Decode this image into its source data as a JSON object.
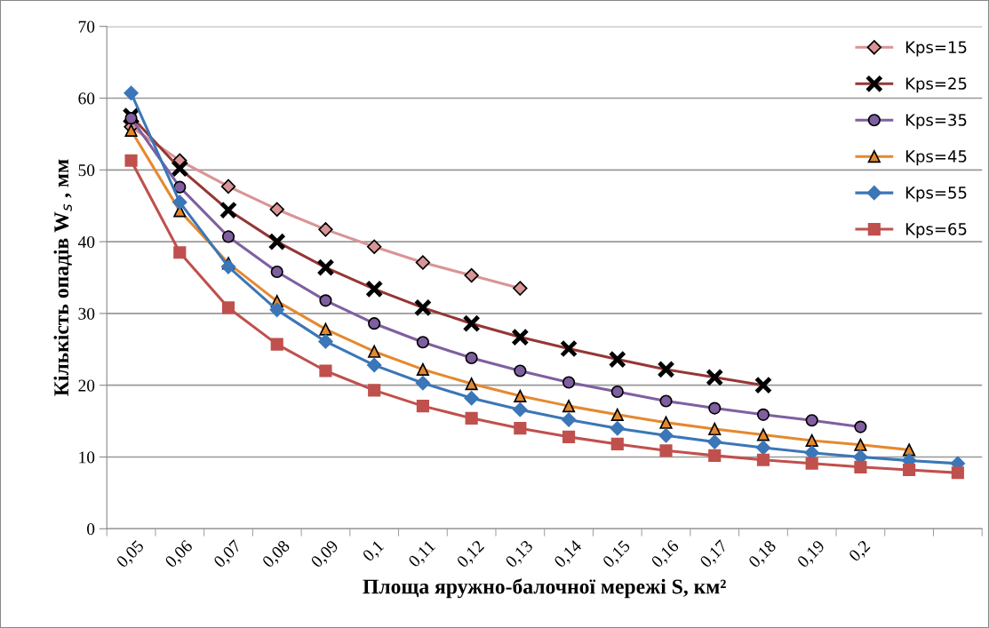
{
  "chart_data": {
    "type": "line",
    "xlabel": "Площа яружно-балочної мережі S, км²",
    "ylabel": "Кількість опадів W$_{s}$ , мм",
    "categories": [
      "0,05",
      "0,06",
      "0,07",
      "0,08",
      "0,09",
      "0,1",
      "0,11",
      "0,12",
      "0,13",
      "0,14",
      "0,15",
      "0,16",
      "0,17",
      "0,18",
      "0,19",
      "0,2",
      null,
      null
    ],
    "ylim": [
      0,
      70
    ],
    "yticks": [
      0,
      10,
      20,
      30,
      40,
      50,
      60,
      70
    ],
    "grid": "y",
    "legend": "top right",
    "series": [
      {
        "name": "Kps=15",
        "color": "#d99594",
        "marker": "diamond",
        "values": [
          56.0,
          51.3,
          47.7,
          44.5,
          41.7,
          39.3,
          37.1,
          35.3,
          33.5,
          null,
          null,
          null,
          null,
          null,
          null,
          null,
          null,
          null
        ]
      },
      {
        "name": "Kps=25",
        "color": "#953735",
        "marker": "cross",
        "values": [
          57.5,
          50.2,
          44.4,
          40.0,
          36.4,
          33.4,
          30.8,
          28.6,
          26.7,
          25.1,
          23.6,
          22.2,
          21.1,
          20.0,
          null,
          null,
          null,
          null
        ]
      },
      {
        "name": "Kps=35",
        "color": "#7f5fa0",
        "marker": "circle",
        "values": [
          57.2,
          47.6,
          40.7,
          35.8,
          31.8,
          28.6,
          26.0,
          23.8,
          22.0,
          20.4,
          19.1,
          17.8,
          16.8,
          15.9,
          15.1,
          14.2,
          null,
          null
        ]
      },
      {
        "name": "Kps=45",
        "color": "#e5892f",
        "marker": "triangle",
        "values": [
          55.5,
          44.3,
          37.0,
          31.7,
          27.8,
          24.7,
          22.2,
          20.2,
          18.5,
          17.1,
          15.9,
          14.8,
          13.9,
          13.1,
          12.3,
          11.7,
          11.0,
          null
        ]
      },
      {
        "name": "Kps=55",
        "color": "#3b76b8",
        "marker": "diamond",
        "values": [
          60.7,
          45.5,
          36.5,
          30.5,
          26.1,
          22.8,
          20.3,
          18.2,
          16.6,
          15.2,
          14.0,
          13.0,
          12.1,
          11.3,
          10.6,
          10.0,
          9.5,
          9.1
        ]
      },
      {
        "name": "Kps=65",
        "color": "#c0504d",
        "marker": "square",
        "values": [
          51.3,
          38.5,
          30.8,
          25.7,
          22.0,
          19.3,
          17.1,
          15.4,
          14.0,
          12.8,
          11.8,
          10.9,
          10.2,
          9.6,
          9.1,
          8.6,
          8.2,
          7.8
        ]
      }
    ]
  }
}
